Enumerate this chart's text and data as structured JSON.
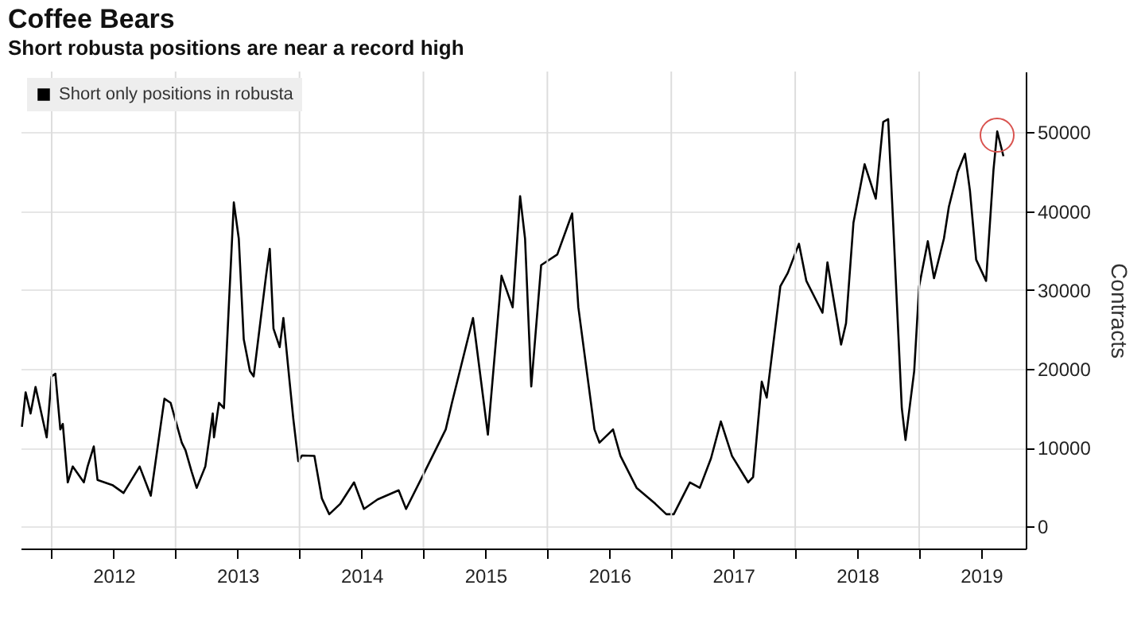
{
  "chart_data": {
    "type": "line",
    "title": "Coffee Bears",
    "subtitle": "Short robusta positions are near a record high",
    "ylabel": "Contracts",
    "x": [
      2011.76,
      2011.79,
      2011.83,
      2011.87,
      2011.96,
      2012.0,
      2012.03,
      2012.07,
      2012.09,
      2012.13,
      2012.17,
      2012.26,
      2012.29,
      2012.34,
      2012.37,
      2012.49,
      2012.58,
      2012.71,
      2012.8,
      2012.91,
      2012.96,
      2013.05,
      2013.08,
      2013.13,
      2013.17,
      2013.24,
      2013.3,
      2013.31,
      2013.35,
      2013.39,
      2013.47,
      2013.51,
      2013.55,
      2013.6,
      2013.63,
      2013.73,
      2013.76,
      2013.79,
      2013.84,
      2013.87,
      2013.92,
      2013.95,
      2013.99,
      2014.02,
      2014.12,
      2014.18,
      2014.24,
      2014.33,
      2014.44,
      2014.52,
      2014.63,
      2014.8,
      2014.86,
      2015.01,
      2015.18,
      2015.23,
      2015.4,
      2015.52,
      2015.63,
      2015.72,
      2015.78,
      2015.82,
      2015.87,
      2015.95,
      2016.08,
      2016.2,
      2016.25,
      2016.38,
      2016.42,
      2016.53,
      2016.59,
      2016.72,
      2016.87,
      2016.96,
      2017.02,
      2017.15,
      2017.23,
      2017.32,
      2017.4,
      2017.49,
      2017.62,
      2017.66,
      2017.73,
      2017.77,
      2017.88,
      2017.94,
      2018.03,
      2018.09,
      2018.22,
      2018.26,
      2018.37,
      2018.41,
      2018.47,
      2018.56,
      2018.65,
      2018.71,
      2018.75,
      2018.79,
      2018.86,
      2018.89,
      2018.96,
      2019.0,
      2019.07,
      2019.12,
      2019.2,
      2019.24,
      2019.31,
      2019.37,
      2019.41,
      2019.46,
      2019.54,
      2019.6,
      2019.63,
      2019.68
    ],
    "series": [
      {
        "name": "Short only positions in robusta",
        "color": "#000000",
        "values": [
          12650,
          17020,
          14330,
          17700,
          11300,
          19030,
          19370,
          12310,
          13000,
          5590,
          7600,
          5590,
          7600,
          10150,
          5900,
          5250,
          4240,
          7600,
          3900,
          16200,
          15680,
          10630,
          9660,
          6920,
          4900,
          7600,
          14330,
          11300,
          15680,
          15000,
          41100,
          36500,
          23750,
          19700,
          19030,
          31800,
          35200,
          25100,
          22740,
          26440,
          18360,
          13660,
          8270,
          9000,
          8940,
          3570,
          1550,
          2890,
          5590,
          2220,
          3430,
          4580,
          2220,
          6920,
          12310,
          15680,
          26440,
          11640,
          31800,
          27790,
          41900,
          36500,
          17750,
          33150,
          34500,
          39700,
          27790,
          12310,
          10630,
          12300,
          8940,
          4900,
          2890,
          1550,
          1550,
          5590,
          4900,
          8620,
          13320,
          8940,
          5590,
          6260,
          18360,
          16340,
          30470,
          32150,
          35860,
          31140,
          27100,
          33500,
          23070,
          25770,
          38540,
          45950,
          41570,
          51300,
          51660,
          38540,
          15000,
          10960,
          19700,
          30470,
          36180,
          31480,
          36520,
          40560,
          44940,
          47280,
          42570,
          33840,
          31140,
          45270,
          50110,
          46960
        ]
      }
    ],
    "xlim": [
      2011.75,
      2019.86
    ],
    "xticks": [
      {
        "value": 2012,
        "label": null
      },
      {
        "value": 2012.5,
        "label": "2012"
      },
      {
        "value": 2013,
        "label": null
      },
      {
        "value": 2013.5,
        "label": "2013"
      },
      {
        "value": 2014,
        "label": null
      },
      {
        "value": 2014.5,
        "label": "2014"
      },
      {
        "value": 2015,
        "label": null
      },
      {
        "value": 2015.5,
        "label": "2015"
      },
      {
        "value": 2016,
        "label": null
      },
      {
        "value": 2016.5,
        "label": "2016"
      },
      {
        "value": 2017,
        "label": null
      },
      {
        "value": 2017.5,
        "label": "2017"
      },
      {
        "value": 2018,
        "label": null
      },
      {
        "value": 2018.5,
        "label": "2018"
      },
      {
        "value": 2019,
        "label": null
      },
      {
        "value": 2019.5,
        "label": "2019"
      }
    ],
    "ylim": [
      -2800,
      57700
    ],
    "yticks": [
      0,
      10000,
      20000,
      30000,
      40000,
      50000
    ],
    "grid": true,
    "legend": "top left",
    "marker": "none",
    "line_style": "solid"
  }
}
